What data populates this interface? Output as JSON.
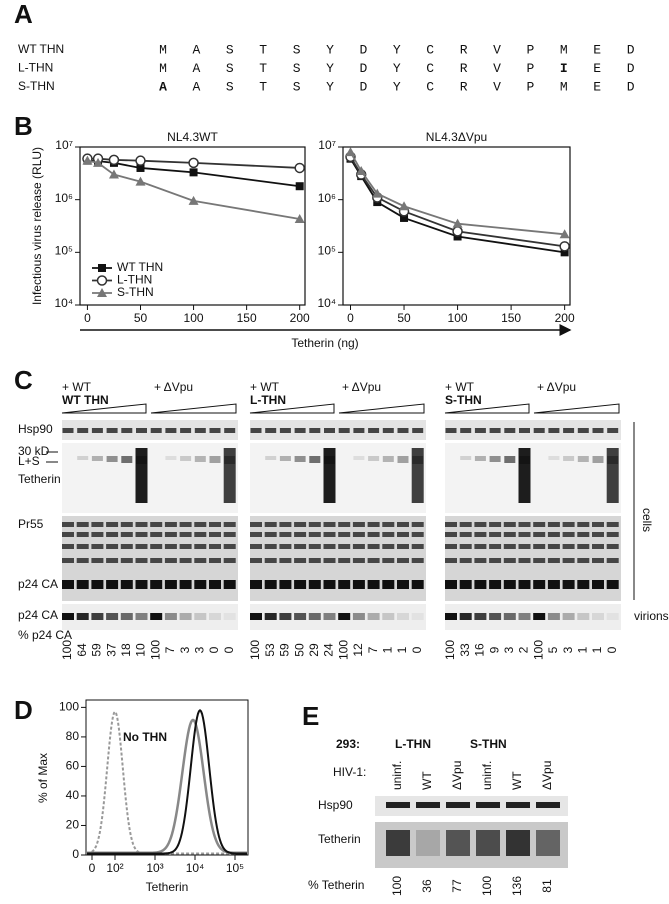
{
  "panel_labels": [
    "A",
    "B",
    "C",
    "D",
    "E"
  ],
  "alignment": {
    "rows": [
      {
        "label": "WT THN",
        "residues": [
          "M",
          "A",
          "S",
          "T",
          "S",
          "Y",
          "D",
          "Y",
          "C",
          "R",
          "V",
          "P",
          "M",
          "E",
          "D"
        ]
      },
      {
        "label": "L-THN",
        "residues": [
          "M",
          "A",
          "S",
          "T",
          "S",
          "Y",
          "D",
          "Y",
          "C",
          "R",
          "V",
          "P",
          "I",
          "E",
          "D"
        ],
        "highlight": 12
      },
      {
        "label": "S-THN",
        "residues": [
          "A",
          "A",
          "S",
          "T",
          "S",
          "Y",
          "D",
          "Y",
          "C",
          "R",
          "V",
          "P",
          "M",
          "E",
          "D"
        ],
        "highlight": 0
      }
    ]
  },
  "chart_data": [
    {
      "type": "line",
      "title": "NL4.3WT",
      "ylabel": "Infectious virus release (RLU)",
      "xlabel": "Tetherin (ng)",
      "log_y": true,
      "legend": "lower left",
      "x": [
        0,
        10,
        25,
        50,
        100,
        200
      ],
      "xlim": [
        -7,
        205
      ],
      "xticks": [
        0,
        50,
        100,
        150,
        200
      ],
      "ylim": [
        10000,
        10000000
      ],
      "yticks": [
        {
          "value": 10000,
          "label": "10⁴"
        },
        {
          "value": 100000,
          "label": "10⁵"
        },
        {
          "value": 1000000,
          "label": "10⁶"
        },
        {
          "value": 10000000,
          "label": "10⁷"
        }
      ],
      "series": [
        {
          "name": "WT THN",
          "color": "#111111",
          "marker": "square",
          "values": [
            5500000,
            5400000,
            5000000,
            4000000,
            3300000,
            1800000
          ]
        },
        {
          "name": "L-THN",
          "color": "#333333",
          "marker": "circle-open",
          "values": [
            6000000,
            6000000,
            5700000,
            5500000,
            5000000,
            4000000
          ]
        },
        {
          "name": "S-THN",
          "color": "#777777",
          "marker": "triangle",
          "values": [
            5500000,
            5000000,
            3000000,
            2200000,
            950000,
            430000
          ]
        }
      ]
    },
    {
      "type": "line",
      "title": "NL4.3ΔVpu",
      "log_y": true,
      "x": [
        0,
        10,
        25,
        50,
        100,
        200
      ],
      "xlim": [
        -7,
        205
      ],
      "xticks": [
        0,
        50,
        100,
        150,
        200
      ],
      "ylim": [
        10000,
        10000000
      ],
      "yticks": [
        {
          "value": 10000,
          "label": "10⁴"
        },
        {
          "value": 100000,
          "label": "10⁵"
        },
        {
          "value": 1000000,
          "label": "10⁶"
        },
        {
          "value": 10000000,
          "label": "10⁷"
        }
      ],
      "series": [
        {
          "color": "#111111",
          "marker": "square",
          "values": [
            6000000,
            2800000,
            900000,
            450000,
            200000,
            100000
          ]
        },
        {
          "color": "#333333",
          "marker": "circle-open",
          "values": [
            6500000,
            3000000,
            1100000,
            600000,
            250000,
            130000
          ]
        },
        {
          "color": "#777777",
          "marker": "triangle",
          "values": [
            8000000,
            3500000,
            1300000,
            750000,
            350000,
            220000
          ]
        }
      ]
    }
  ],
  "blot_c": {
    "blocks": [
      {
        "condition": "+ WT",
        "construct": "WT THN",
        "mutant": "+ ΔVpu",
        "percent": [
          100,
          64,
          59,
          37,
          18,
          10,
          100,
          7,
          3,
          3,
          0,
          0
        ]
      },
      {
        "condition": "+ WT",
        "construct": "L-THN",
        "mutant": "+ ΔVpu",
        "percent": [
          100,
          53,
          59,
          50,
          29,
          24,
          100,
          12,
          7,
          1,
          1,
          0
        ]
      },
      {
        "condition": "+ WT",
        "construct": "S-THN",
        "mutant": "+ ΔVpu",
        "percent": [
          100,
          33,
          16,
          9,
          3,
          2,
          100,
          5,
          3,
          1,
          1,
          0
        ]
      }
    ],
    "row_labels": {
      "hsp90": "Hsp90",
      "kd": "30 kD",
      "ls": "L+S",
      "tetherin": "Tetherin",
      "pr55": "Pr55",
      "p24": "p24 CA",
      "p24_virions": "p24 CA",
      "percent": "% p24 CA"
    },
    "cells": "cells",
    "virions": "virions"
  },
  "flow_d": {
    "ylabel": "% of Max",
    "xlabel": "Tetherin",
    "ylim": [
      0,
      105
    ],
    "yticks": [
      0,
      20,
      40,
      60,
      80,
      100
    ],
    "xticks": [
      "0",
      "10²",
      "10³",
      "10⁴",
      "10⁵"
    ],
    "annotation": "No THN"
  },
  "blot_e": {
    "cell_line": "293:",
    "groups": [
      "L-THN",
      "S-THN"
    ],
    "hiv_label": "HIV-1:",
    "lanes": [
      "uninf.",
      "WT",
      "ΔVpu",
      "uninf.",
      "WT",
      "ΔVpu"
    ],
    "hsp90": "Hsp90",
    "tetherin": "Tetherin",
    "percent_label": "% Tetherin",
    "percent": [
      100,
      36,
      77,
      100,
      136,
      81
    ]
  }
}
